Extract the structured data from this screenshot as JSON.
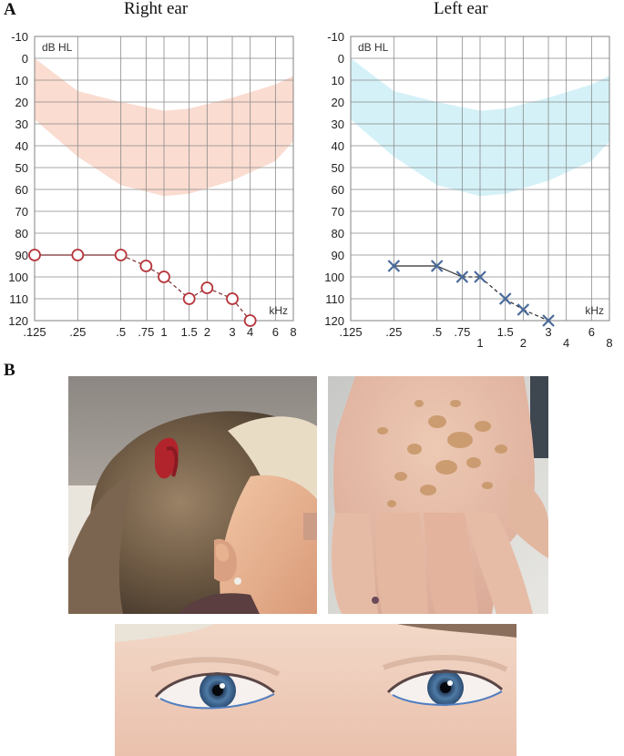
{
  "panel_a_label": "A",
  "panel_b_label": "B",
  "chart_data": [
    {
      "type": "line",
      "title": "Right ear",
      "ylabel": "dB HL",
      "xlabel": "kHz",
      "y_ticks": [
        "-10",
        "0",
        "10",
        "20",
        "30",
        "40",
        "50",
        "60",
        "70",
        "80",
        "90",
        "100",
        "110",
        "120"
      ],
      "x_ticks": [
        {
          "label": ".125",
          "f": 0.125,
          "row": 0
        },
        {
          "label": ".25",
          "f": 0.25,
          "row": 0
        },
        {
          "label": ".5",
          "f": 0.5,
          "row": 0
        },
        {
          "label": ".75",
          "f": 0.75,
          "row": 0
        },
        {
          "label": "1",
          "f": 1,
          "row": 0
        },
        {
          "label": "1.5",
          "f": 1.5,
          "row": 0
        },
        {
          "label": "2",
          "f": 2,
          "row": 0
        },
        {
          "label": "3",
          "f": 3,
          "row": 0
        },
        {
          "label": "4",
          "f": 4,
          "row": 0
        },
        {
          "label": "6",
          "f": 6,
          "row": 0
        },
        {
          "label": "8",
          "f": 8,
          "row": 0
        }
      ],
      "ylim": [
        -10,
        120
      ],
      "y_inverted": true,
      "x_scale": "log",
      "marker": "circle",
      "color": "#b5343a",
      "band_color": "#f9d8cb",
      "points": [
        {
          "x": 0.125,
          "y": 90
        },
        {
          "x": 0.25,
          "y": 90
        },
        {
          "x": 0.5,
          "y": 90
        },
        {
          "x": 0.75,
          "y": 95
        },
        {
          "x": 1,
          "y": 100
        },
        {
          "x": 1.5,
          "y": 110
        },
        {
          "x": 2,
          "y": 105
        },
        {
          "x": 3,
          "y": 110
        },
        {
          "x": 4,
          "y": 120
        }
      ],
      "band_upper": [
        0,
        15,
        20,
        24,
        23,
        18,
        12,
        8
      ],
      "band_lower": [
        28,
        45,
        58,
        63,
        62,
        56,
        47,
        38
      ]
    },
    {
      "type": "line",
      "title": "Left ear",
      "ylabel": "dB HL",
      "xlabel": "kHz",
      "y_ticks": [
        "-10",
        "0",
        "10",
        "20",
        "30",
        "40",
        "50",
        "60",
        "70",
        "80",
        "90",
        "100",
        "110",
        "120"
      ],
      "x_ticks": [
        {
          "label": ".125",
          "f": 0.125,
          "row": 0
        },
        {
          "label": ".25",
          "f": 0.25,
          "row": 0
        },
        {
          "label": ".5",
          "f": 0.5,
          "row": 0
        },
        {
          "label": ".75",
          "f": 0.75,
          "row": 0
        },
        {
          "label": "1",
          "f": 1,
          "row": 1
        },
        {
          "label": "1.5",
          "f": 1.5,
          "row": 0
        },
        {
          "label": "2",
          "f": 2,
          "row": 1
        },
        {
          "label": "3",
          "f": 3,
          "row": 0
        },
        {
          "label": "4",
          "f": 4,
          "row": 1
        },
        {
          "label": "6",
          "f": 6,
          "row": 0
        },
        {
          "label": "8",
          "f": 8,
          "row": 1
        }
      ],
      "ylim": [
        -10,
        120
      ],
      "y_inverted": true,
      "x_scale": "log",
      "marker": "cross",
      "color": "#4a6a9a",
      "band_color": "#cfeff6",
      "points": [
        {
          "x": 0.25,
          "y": 95
        },
        {
          "x": 0.5,
          "y": 95
        },
        {
          "x": 0.75,
          "y": 100
        },
        {
          "x": 1,
          "y": 100
        },
        {
          "x": 1.5,
          "y": 110
        },
        {
          "x": 2,
          "y": 115
        },
        {
          "x": 3,
          "y": 120
        }
      ],
      "band_upper": [
        0,
        15,
        20,
        24,
        23,
        18,
        12,
        8
      ],
      "band_lower": [
        28,
        45,
        58,
        63,
        62,
        56,
        47,
        38
      ]
    }
  ],
  "photos": [
    {
      "subject": "side view of head with hearing aid and white forelock"
    },
    {
      "subject": "back of hand with pigmented patches"
    },
    {
      "subject": "close-up of blue eyes"
    }
  ]
}
